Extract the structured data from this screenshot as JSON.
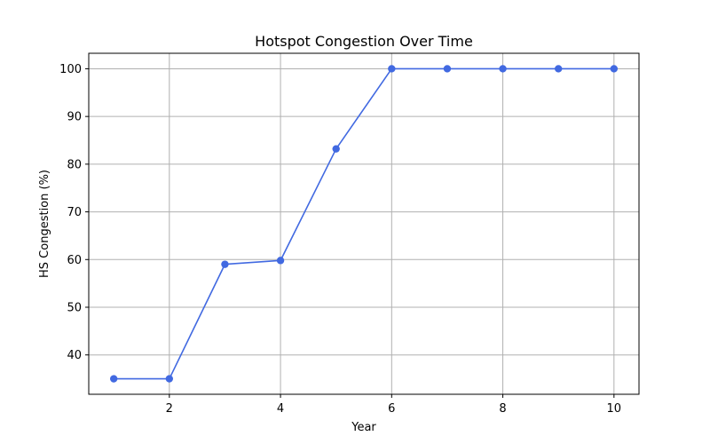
{
  "chart_data": {
    "type": "line",
    "title": "Hotspot Congestion Over Time",
    "xlabel": "Year",
    "ylabel": "HS Congestion (%)",
    "x": [
      1,
      2,
      3,
      4,
      5,
      6,
      7,
      8,
      9,
      10
    ],
    "series": [
      {
        "values": [
          35.0,
          35.0,
          59.0,
          59.8,
          83.2,
          100.0,
          100.0,
          100.0,
          100.0,
          100.0
        ],
        "color": "#4169e1",
        "marker": "circle"
      }
    ],
    "xlim": [
      0.55,
      10.45
    ],
    "ylim": [
      31.75,
      103.25
    ],
    "xticks": [
      2,
      4,
      6,
      8,
      10
    ],
    "yticks": [
      40,
      50,
      60,
      70,
      80,
      90,
      100
    ],
    "grid": true
  }
}
